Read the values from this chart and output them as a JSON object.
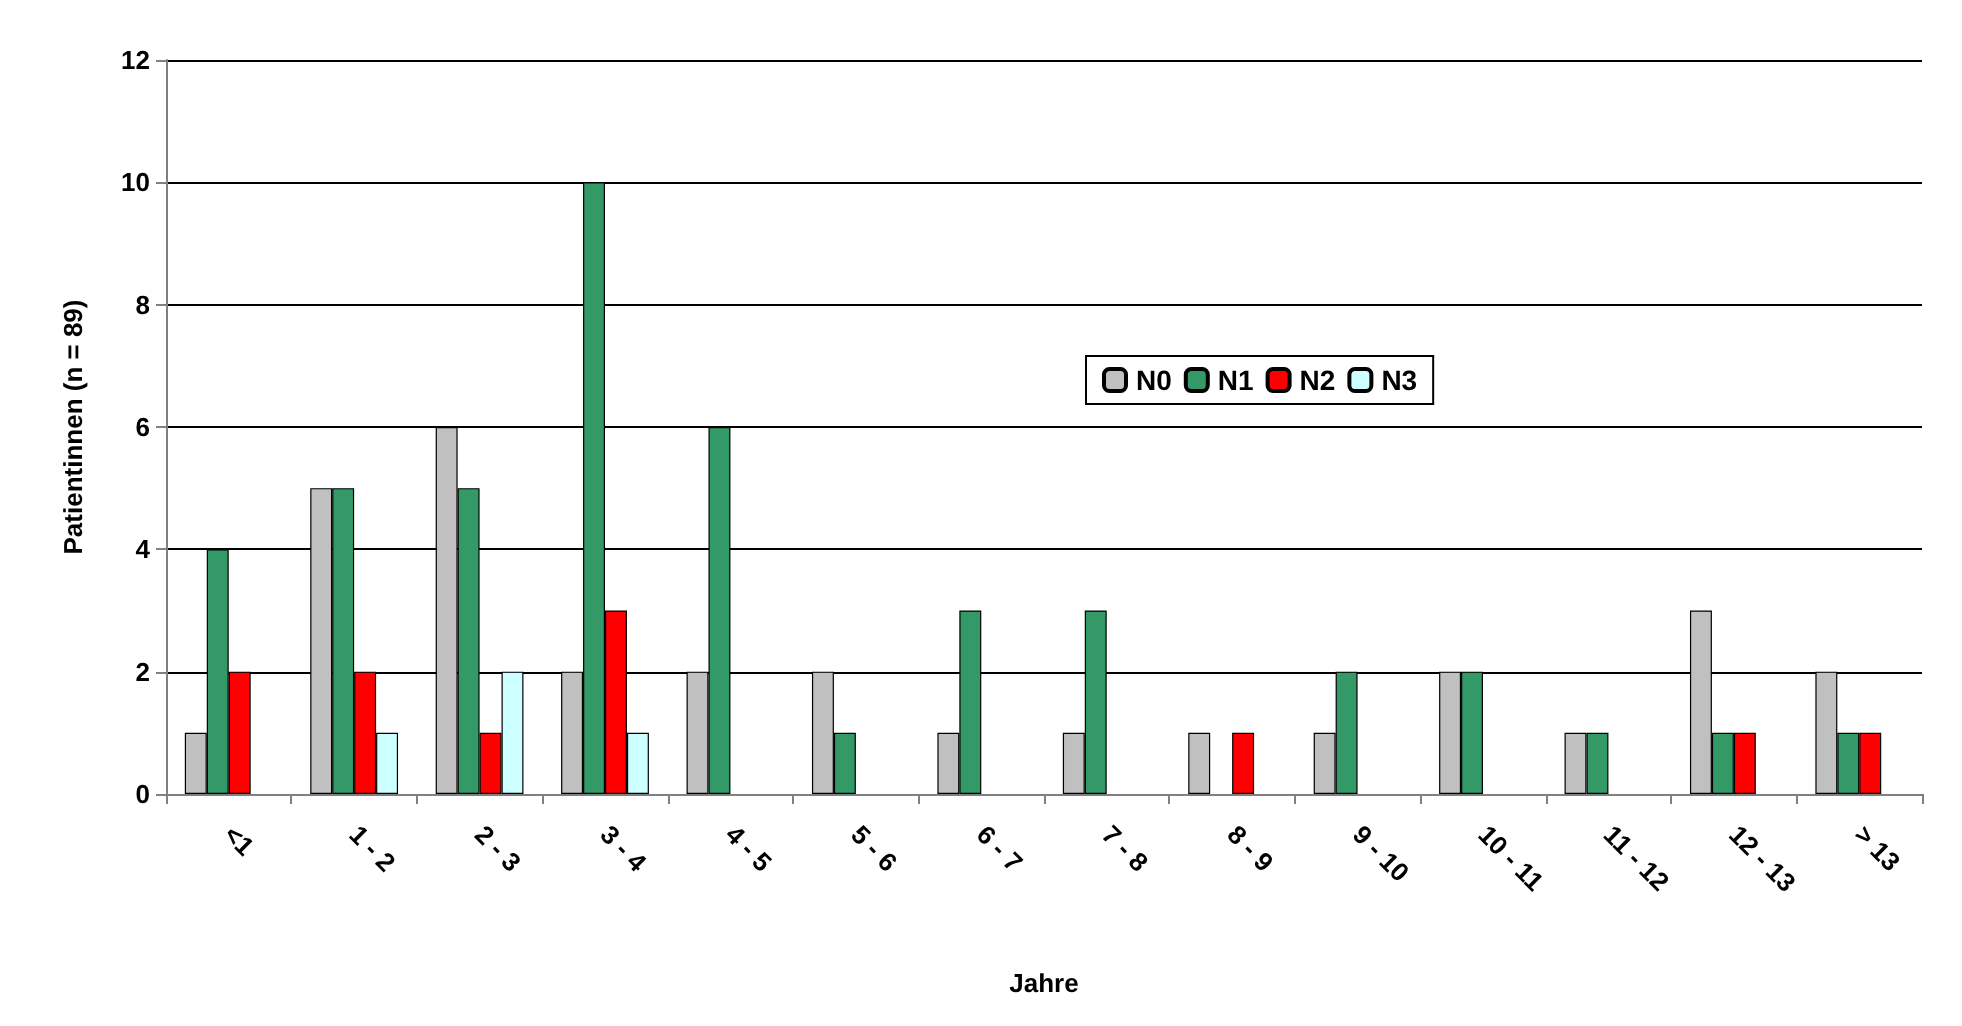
{
  "chart_data": {
    "type": "bar",
    "xlabel": "Jahre",
    "ylabel": "Patientinnen (n = 89)",
    "categories": [
      "<1",
      "1 - 2",
      "2 - 3",
      "3 - 4",
      "4 - 5",
      "5 - 6",
      "6 - 7",
      "7 - 8",
      "8 - 9",
      "9 - 10",
      "10 - 11",
      "11 - 12",
      "12 - 13",
      "> 13"
    ],
    "series": [
      {
        "name": "N0",
        "color": "#c0c0c0",
        "values": [
          1,
          5,
          6,
          2,
          2,
          2,
          1,
          1,
          1,
          1,
          2,
          1,
          3,
          2
        ]
      },
      {
        "name": "N1",
        "color": "#339966",
        "values": [
          4,
          5,
          5,
          10,
          6,
          1,
          3,
          3,
          0,
          2,
          2,
          1,
          1,
          1
        ]
      },
      {
        "name": "N2",
        "color": "#ff0000",
        "values": [
          2,
          2,
          1,
          3,
          0,
          0,
          0,
          0,
          1,
          0,
          0,
          0,
          1,
          1
        ]
      },
      {
        "name": "N3",
        "color": "#ccffff",
        "values": [
          0,
          1,
          2,
          1,
          0,
          0,
          0,
          0,
          0,
          0,
          0,
          0,
          0,
          0
        ]
      }
    ],
    "ylim": [
      0,
      12
    ],
    "yticks": [
      0,
      2,
      4,
      6,
      8,
      10,
      12
    ],
    "grid": "y",
    "legend": "center"
  }
}
